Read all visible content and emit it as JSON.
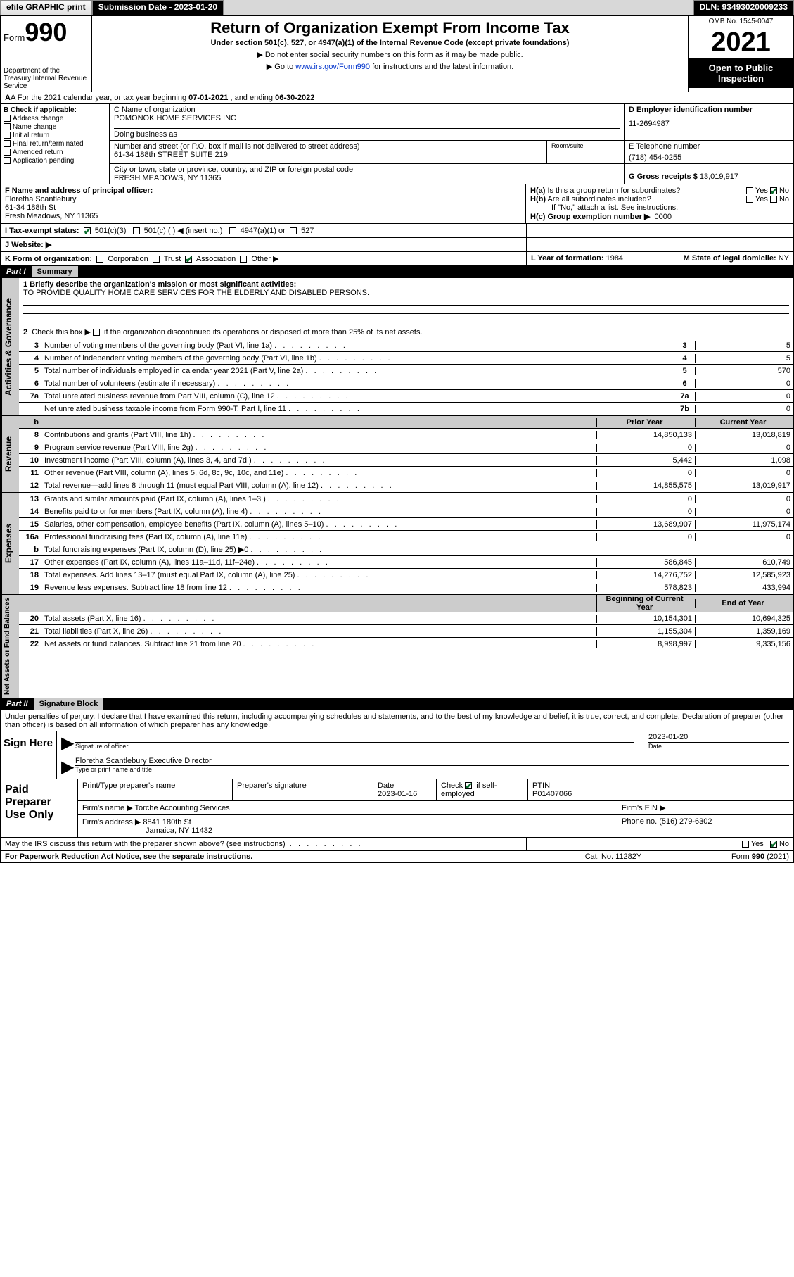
{
  "colors": {
    "black": "#000000",
    "white": "#ffffff",
    "gray_light": "#cccccc",
    "gray_mid": "#999999",
    "gray_top": "#d8d8d8",
    "link": "#0033cc",
    "check_green": "#0a6e2e"
  },
  "topbar": {
    "efile": "efile GRAPHIC print",
    "subdate_label": "Submission Date - 2023-01-20",
    "dln": "DLN: 93493020009233"
  },
  "header": {
    "form_label": "Form",
    "form_no": "990",
    "title": "Return of Organization Exempt From Income Tax",
    "subtitle": "Under section 501(c), 527, or 4947(a)(1) of the Internal Revenue Code (except private foundations)",
    "line1": "▶ Do not enter social security numbers on this form as it may be made public.",
    "line2_pre": "▶ Go to ",
    "line2_link": "www.irs.gov/Form990",
    "line2_post": " for instructions and the latest information.",
    "dept": "Department of the Treasury Internal Revenue Service",
    "omb": "OMB No. 1545-0047",
    "year": "2021",
    "open": "Open to Public Inspection"
  },
  "lineA": {
    "pre": "A For the 2021 calendar year, or tax year beginning ",
    "begin": "07-01-2021",
    "mid": " , and ending ",
    "end": "06-30-2022"
  },
  "colB": {
    "label": "B Check if applicable:",
    "items": [
      "Address change",
      "Name change",
      "Initial return",
      "Final return/terminated",
      "Amended return",
      "Application pending"
    ]
  },
  "entity": {
    "name_lbl": "C Name of organization",
    "name": "POMONOK HOME SERVICES INC",
    "dba_lbl": "Doing business as",
    "dba": "",
    "ein_lbl": "D Employer identification number",
    "ein": "11-2694987",
    "addr_lbl": "Number and street (or P.O. box if mail is not delivered to street address)",
    "addr": "61-34 188th STREET SUITE 219",
    "suite_lbl": "Room/suite",
    "suite": "",
    "tel_lbl": "E Telephone number",
    "tel": "(718) 454-0255",
    "city_lbl": "City or town, state or province, country, and ZIP or foreign postal code",
    "city": "FRESH MEADOWS, NY  11365",
    "gross_lbl": "G Gross receipts $",
    "gross": "13,019,917"
  },
  "officerF": {
    "lbl": "F Name and address of principal officer:",
    "name": "Floretha Scantlebury",
    "addr1": "61-34 188th St",
    "addr2": "Fresh Meadows, NY  11365"
  },
  "groupH": {
    "ha": "H(a) Is this a group return for subordinates?",
    "ha_yes": "Yes",
    "ha_no": "No",
    "hb": "H(b) Are all subordinates included?",
    "hb_yes": "Yes",
    "hb_no": "No",
    "hb_note": "If \"No,\" attach a list. See instructions.",
    "hc": "H(c) Group exemption number ▶",
    "hc_val": "0000"
  },
  "taxI": {
    "lbl": "I   Tax-exempt status:",
    "opt1": "501(c)(3)",
    "opt2": "501(c) ( ) ◀ (insert no.)",
    "opt3": "4947(a)(1) or",
    "opt4": "527"
  },
  "webJ": {
    "lbl": "J   Website: ▶",
    "val": ""
  },
  "formK": {
    "lbl": "K Form of organization:",
    "opts": [
      "Corporation",
      "Trust",
      "Association",
      "Other ▶"
    ],
    "checked_idx": 2,
    "year_lbl": "L Year of formation:",
    "year": "1984",
    "dom_lbl": "M State of legal domicile:",
    "dom": "NY"
  },
  "part1": {
    "label": "Part I",
    "title": "Summary"
  },
  "gov": {
    "q1_lbl": "1  Briefly describe the organization's mission or most significant activities:",
    "q1_val": "TO PROVIDE QUALITY HOME CARE SERVICES FOR THE ELDERLY AND DISABLED PERSONS.",
    "q2": "2   Check this box ▶        if the organization discontinued its operations or disposed of more than 25% of its net assets.",
    "rows": [
      {
        "n": "3",
        "t": "Number of voting members of the governing body (Part VI, line 1a)",
        "box": "3",
        "v": "5"
      },
      {
        "n": "4",
        "t": "Number of independent voting members of the governing body (Part VI, line 1b)",
        "box": "4",
        "v": "5"
      },
      {
        "n": "5",
        "t": "Total number of individuals employed in calendar year 2021 (Part V, line 2a)",
        "box": "5",
        "v": "570"
      },
      {
        "n": "6",
        "t": "Total number of volunteers (estimate if necessary)",
        "box": "6",
        "v": "0"
      },
      {
        "n": "7a",
        "t": "Total unrelated business revenue from Part VIII, column (C), line 12",
        "box": "7a",
        "v": "0"
      },
      {
        "n": "",
        "t": "Net unrelated business taxable income from Form 990-T, Part I, line 11",
        "box": "7b",
        "v": "0"
      }
    ]
  },
  "revenue": {
    "hdr_b": "b",
    "col_prior": "Prior Year",
    "col_curr": "Current Year",
    "rows": [
      {
        "n": "8",
        "t": "Contributions and grants (Part VIII, line 1h)",
        "p": "14,850,133",
        "c": "13,018,819"
      },
      {
        "n": "9",
        "t": "Program service revenue (Part VIII, line 2g)",
        "p": "0",
        "c": "0"
      },
      {
        "n": "10",
        "t": "Investment income (Part VIII, column (A), lines 3, 4, and 7d )",
        "p": "5,442",
        "c": "1,098"
      },
      {
        "n": "11",
        "t": "Other revenue (Part VIII, column (A), lines 5, 6d, 8c, 9c, 10c, and 11e)",
        "p": "0",
        "c": "0"
      },
      {
        "n": "12",
        "t": "Total revenue—add lines 8 through 11 (must equal Part VIII, column (A), line 12)",
        "p": "14,855,575",
        "c": "13,019,917"
      }
    ]
  },
  "expenses": {
    "rows": [
      {
        "n": "13",
        "t": "Grants and similar amounts paid (Part IX, column (A), lines 1–3 )",
        "p": "0",
        "c": "0"
      },
      {
        "n": "14",
        "t": "Benefits paid to or for members (Part IX, column (A), line 4)",
        "p": "0",
        "c": "0"
      },
      {
        "n": "15",
        "t": "Salaries, other compensation, employee benefits (Part IX, column (A), lines 5–10)",
        "p": "13,689,907",
        "c": "11,975,174"
      },
      {
        "n": "16a",
        "t": "Professional fundraising fees (Part IX, column (A), line 11e)",
        "p": "0",
        "c": "0"
      },
      {
        "n": "b",
        "t": "Total fundraising expenses (Part IX, column (D), line 25) ▶0",
        "p": "",
        "c": "",
        "gray": true
      },
      {
        "n": "17",
        "t": "Other expenses (Part IX, column (A), lines 11a–11d, 11f–24e)",
        "p": "586,845",
        "c": "610,749"
      },
      {
        "n": "18",
        "t": "Total expenses. Add lines 13–17 (must equal Part IX, column (A), line 25)",
        "p": "14,276,752",
        "c": "12,585,923"
      },
      {
        "n": "19",
        "t": "Revenue less expenses. Subtract line 18 from line 12",
        "p": "578,823",
        "c": "433,994"
      }
    ]
  },
  "netassets": {
    "col_begin": "Beginning of Current Year",
    "col_end": "End of Year",
    "rows": [
      {
        "n": "20",
        "t": "Total assets (Part X, line 16)",
        "p": "10,154,301",
        "c": "10,694,325"
      },
      {
        "n": "21",
        "t": "Total liabilities (Part X, line 26)",
        "p": "1,155,304",
        "c": "1,359,169"
      },
      {
        "n": "22",
        "t": "Net assets or fund balances. Subtract line 21 from line 20",
        "p": "8,998,997",
        "c": "9,335,156"
      }
    ]
  },
  "part2": {
    "label": "Part II",
    "title": "Signature Block"
  },
  "sig": {
    "decl": "Under penalties of perjury, I declare that I have examined this return, including accompanying schedules and statements, and to the best of my knowledge and belief, it is true, correct, and complete. Declaration of preparer (other than officer) is based on all information of which preparer has any knowledge.",
    "sign_here": "Sign Here",
    "sig_officer_lbl": "Signature of officer",
    "date_lbl": "Date",
    "date_val": "2023-01-20",
    "officer_name": "Floretha Scantlebury Executive Director",
    "type_lbl": "Type or print name and title"
  },
  "prep": {
    "lbl": "Paid Preparer Use Only",
    "row1": {
      "a": "Print/Type preparer's name",
      "b": "Preparer's signature",
      "c": "Date",
      "c_v": "2023-01-16",
      "d": "Check        if self-employed",
      "e": "PTIN",
      "e_v": "P01407066"
    },
    "row2": {
      "a": "Firm's name    ▶",
      "a_v": "Torche Accounting Services",
      "b": "Firm's EIN ▶",
      "b_v": ""
    },
    "row3": {
      "a": "Firm's address ▶",
      "a_v": "8841 180th St",
      "a_v2": "Jamaica, NY  11432",
      "b": "Phone no.",
      "b_v": "(516) 279-6302"
    }
  },
  "discuss": {
    "q": "May the IRS discuss this return with the preparer shown above? (see instructions)",
    "yes": "Yes",
    "no": "No"
  },
  "footer": {
    "pra": "For Paperwork Reduction Act Notice, see the separate instructions.",
    "cat": "Cat. No. 11282Y",
    "form": "Form 990 (2021)"
  },
  "vlabels": {
    "gov": "Activities & Governance",
    "rev": "Revenue",
    "exp": "Expenses",
    "net": "Net Assets or Fund Balances"
  }
}
